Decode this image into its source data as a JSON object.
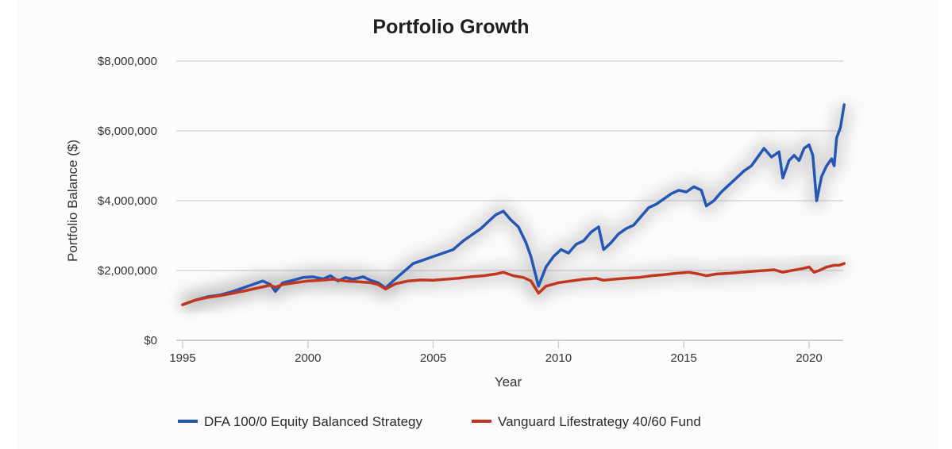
{
  "chart_data": {
    "type": "line",
    "title": "Portfolio Growth",
    "xlabel": "Year",
    "ylabel": "Portfolio Balance ($)",
    "xlim": [
      1995,
      2021.4
    ],
    "ylim": [
      0,
      8000000
    ],
    "x_ticks": [
      1995,
      2000,
      2005,
      2010,
      2015,
      2020
    ],
    "x_tick_labels": [
      "1995",
      "2000",
      "2005",
      "2010",
      "2015",
      "2020"
    ],
    "y_ticks": [
      0,
      2000000,
      4000000,
      6000000,
      8000000
    ],
    "y_tick_labels": [
      "$0",
      "$2,000,000",
      "$4,000,000",
      "$6,000,000",
      "$8,000,000"
    ],
    "grid": true,
    "legend_position": "bottom",
    "series": [
      {
        "name": "DFA 100/0 Equity Balanced Strategy",
        "color": "#2456b4",
        "x": [
          1995.0,
          1995.5,
          1996.0,
          1996.5,
          1997.0,
          1997.4,
          1997.8,
          1998.2,
          1998.5,
          1998.7,
          1999.0,
          1999.4,
          1999.8,
          2000.2,
          2000.6,
          2000.9,
          2001.2,
          2001.5,
          2001.8,
          2002.2,
          2002.5,
          2002.8,
          2003.1,
          2003.4,
          2003.8,
          2004.2,
          2004.6,
          2005.0,
          2005.4,
          2005.8,
          2006.2,
          2006.5,
          2006.9,
          2007.2,
          2007.5,
          2007.8,
          2008.1,
          2008.4,
          2008.7,
          2008.9,
          2009.2,
          2009.5,
          2009.8,
          2010.1,
          2010.4,
          2010.7,
          2011.0,
          2011.3,
          2011.6,
          2011.8,
          2012.1,
          2012.4,
          2012.7,
          2013.0,
          2013.3,
          2013.6,
          2013.9,
          2014.2,
          2014.5,
          2014.8,
          2015.1,
          2015.4,
          2015.7,
          2015.9,
          2016.2,
          2016.5,
          2016.8,
          2017.1,
          2017.4,
          2017.7,
          2018.0,
          2018.2,
          2018.5,
          2018.8,
          2018.95,
          2019.2,
          2019.4,
          2019.6,
          2019.8,
          2020.0,
          2020.15,
          2020.3,
          2020.5,
          2020.7,
          2020.9,
          2021.0,
          2021.1,
          2021.25,
          2021.4
        ],
        "y": [
          1020000,
          1150000,
          1250000,
          1300000,
          1400000,
          1500000,
          1600000,
          1700000,
          1600000,
          1400000,
          1650000,
          1720000,
          1800000,
          1820000,
          1760000,
          1850000,
          1700000,
          1800000,
          1750000,
          1820000,
          1720000,
          1650000,
          1500000,
          1700000,
          1950000,
          2200000,
          2300000,
          2400000,
          2500000,
          2600000,
          2850000,
          3000000,
          3200000,
          3400000,
          3600000,
          3700000,
          3450000,
          3250000,
          2800000,
          2400000,
          1550000,
          2100000,
          2400000,
          2600000,
          2500000,
          2750000,
          2850000,
          3100000,
          3250000,
          2600000,
          2800000,
          3050000,
          3200000,
          3300000,
          3550000,
          3800000,
          3900000,
          4050000,
          4200000,
          4300000,
          4250000,
          4400000,
          4300000,
          3850000,
          4000000,
          4250000,
          4450000,
          4650000,
          4850000,
          5000000,
          5300000,
          5500000,
          5250000,
          5400000,
          4650000,
          5150000,
          5300000,
          5150000,
          5500000,
          5600000,
          5300000,
          4000000,
          4700000,
          5000000,
          5200000,
          5000000,
          5800000,
          6100000,
          6750000
        ]
      },
      {
        "name": "Vanguard Lifestrategy 40/60 Fund",
        "color": "#c0361f",
        "x": [
          1995.0,
          1995.5,
          1996.0,
          1996.5,
          1997.0,
          1997.5,
          1998.0,
          1998.5,
          1998.7,
          1999.0,
          1999.5,
          2000.0,
          2000.5,
          2001.0,
          2001.5,
          2002.0,
          2002.5,
          2002.8,
          2003.1,
          2003.5,
          2004.0,
          2004.5,
          2005.0,
          2005.5,
          2006.0,
          2006.5,
          2007.0,
          2007.5,
          2007.8,
          2008.2,
          2008.6,
          2008.9,
          2009.2,
          2009.5,
          2010.0,
          2010.5,
          2011.0,
          2011.5,
          2011.8,
          2012.2,
          2012.7,
          2013.2,
          2013.7,
          2014.2,
          2014.7,
          2015.2,
          2015.6,
          2015.9,
          2016.3,
          2016.8,
          2017.3,
          2017.8,
          2018.2,
          2018.6,
          2018.95,
          2019.3,
          2019.7,
          2020.0,
          2020.2,
          2020.4,
          2020.7,
          2021.0,
          2021.2,
          2021.4
        ],
        "y": [
          1020000,
          1150000,
          1230000,
          1280000,
          1350000,
          1420000,
          1500000,
          1580000,
          1520000,
          1600000,
          1650000,
          1700000,
          1720000,
          1750000,
          1700000,
          1680000,
          1650000,
          1600000,
          1470000,
          1620000,
          1700000,
          1730000,
          1720000,
          1750000,
          1780000,
          1820000,
          1850000,
          1900000,
          1950000,
          1850000,
          1800000,
          1700000,
          1350000,
          1550000,
          1650000,
          1700000,
          1750000,
          1780000,
          1720000,
          1750000,
          1780000,
          1800000,
          1850000,
          1880000,
          1920000,
          1950000,
          1900000,
          1850000,
          1900000,
          1920000,
          1950000,
          1980000,
          2000000,
          2020000,
          1950000,
          2000000,
          2050000,
          2100000,
          1950000,
          2000000,
          2100000,
          2150000,
          2150000,
          2200000
        ]
      }
    ]
  }
}
